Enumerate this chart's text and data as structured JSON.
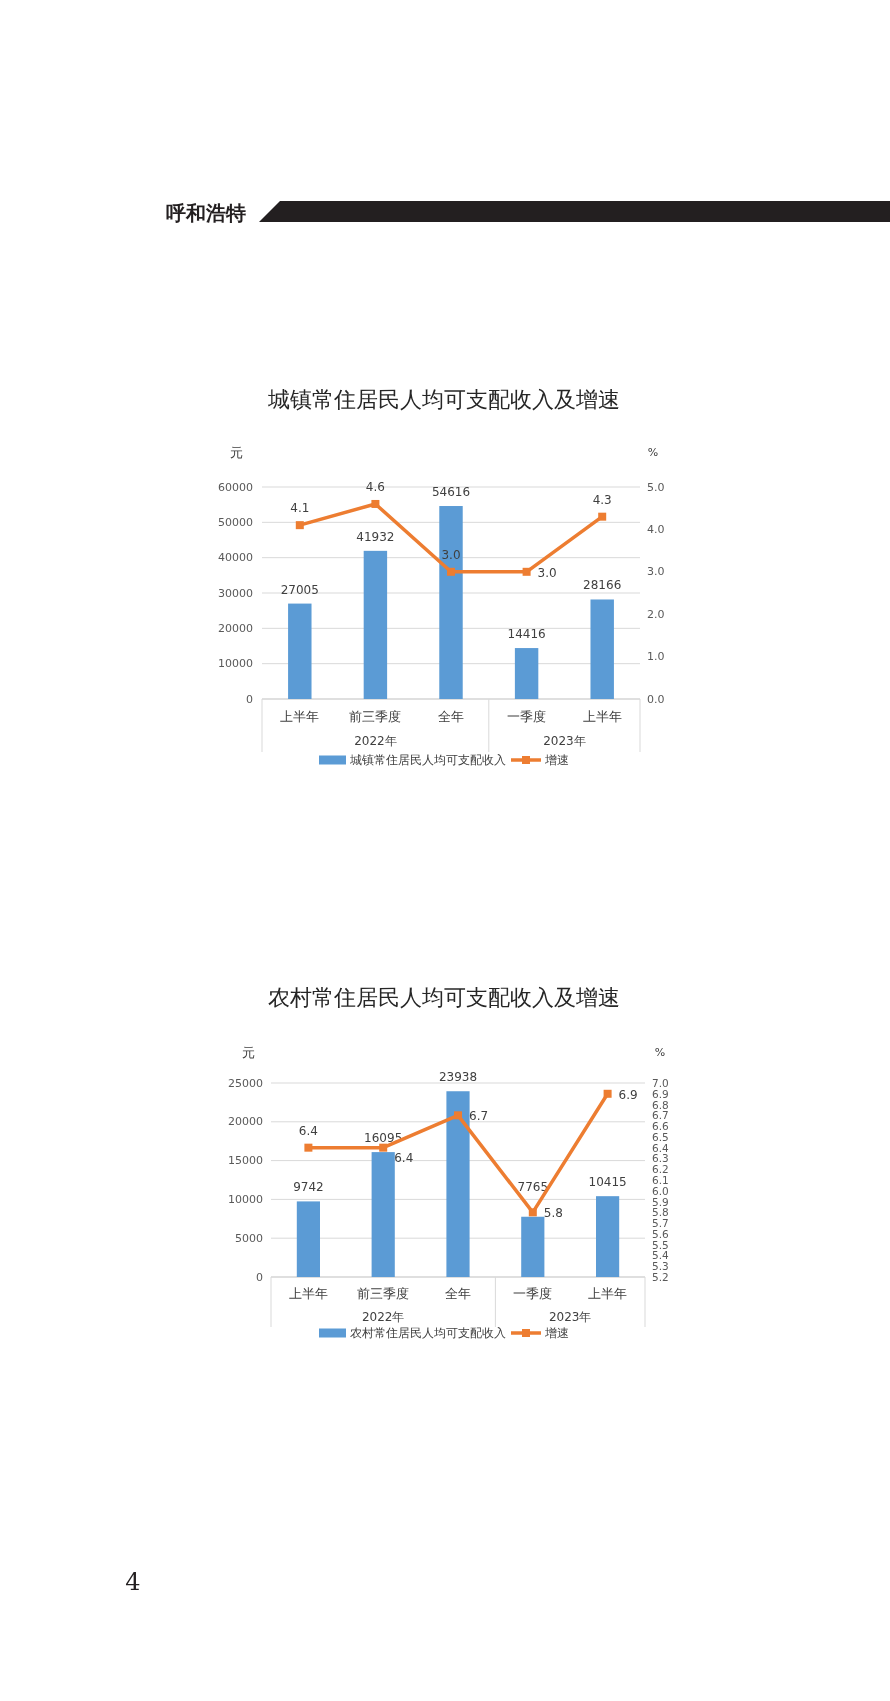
{
  "chart_data": [
    {
      "type": "bar",
      "title": "城镇常住居民人均可支配收入及增速",
      "ylabel": "元",
      "y2label": "%",
      "categories": [
        "上半年",
        "前三季度",
        "全年",
        "一季度",
        "上半年"
      ],
      "series": [
        {
          "name": "城镇常住居民人均可支配收入",
          "color": "#5b9bd5",
          "values": [
            27005,
            41932,
            54616,
            14416,
            28166
          ],
          "value_labels": [
            "27005",
            "41932",
            "54616",
            "14416",
            "28166"
          ]
        },
        {
          "name": "增速",
          "type": "line",
          "axis": "y2",
          "color": "#ed7d31",
          "values": [
            4.1,
            4.6,
            3.0,
            3.0,
            4.3
          ],
          "value_labels": [
            "4.1",
            "4.6",
            "3.0",
            "3.0",
            "4.3"
          ]
        }
      ],
      "ylim": [
        0,
        60000
      ],
      "yticks": [
        0,
        10000,
        20000,
        30000,
        40000,
        50000,
        60000
      ],
      "y2lim": [
        0,
        5
      ],
      "y2ticks": [
        {
          "value": 0,
          "label": "0.0"
        },
        {
          "value": 1,
          "label": "1.0"
        },
        {
          "value": 2,
          "label": "2.0"
        },
        {
          "value": 3,
          "label": "3.0"
        },
        {
          "value": 4,
          "label": "4.0"
        },
        {
          "value": 5,
          "label": "5.0"
        }
      ],
      "grid": "y",
      "legend": "bottom",
      "marker": "square",
      "line_style": "solid",
      "annotations": [
        "2022年",
        "2023年",
        "呼和浩特"
      ]
    },
    {
      "type": "bar",
      "title": "农村常住居民人均可支配收入及增速",
      "ylabel": "元",
      "y2label": "%",
      "categories": [
        "上半年",
        "前三季度",
        "全年",
        "一季度",
        "上半年"
      ],
      "series": [
        {
          "name": "农村常住居民人均可支配收入",
          "color": "#5b9bd5",
          "values": [
            9742,
            16095,
            23938,
            7765,
            10415
          ],
          "value_labels": [
            "9742",
            "16095",
            "23938",
            "7765",
            "10415"
          ]
        },
        {
          "name": "增速",
          "type": "line",
          "axis": "y2",
          "color": "#ed7d31",
          "values": [
            6.4,
            6.4,
            6.7,
            5.8,
            6.9
          ],
          "value_labels": [
            "6.4",
            "6.4",
            "6.7",
            "5.8",
            "6.9"
          ]
        }
      ],
      "ylim": [
        0,
        25000
      ],
      "yticks": [
        0,
        5000,
        10000,
        15000,
        20000,
        25000
      ],
      "y2lim": [
        5.2,
        7.0
      ],
      "y2ticks": [
        5.2,
        5.3,
        5.4,
        5.5,
        5.6,
        5.7,
        5.8,
        5.9,
        {
          "value": 6,
          "label": "6.0"
        },
        6.1,
        6.2,
        6.3,
        6.4,
        6.5,
        6.6,
        6.7,
        6.8,
        6.9,
        {
          "value": 7,
          "label": "7.0"
        }
      ],
      "grid": "y",
      "legend": "bottom",
      "marker": "square",
      "line_style": "solid",
      "annotations": [
        "2022年",
        "2023年",
        "4"
      ]
    }
  ]
}
